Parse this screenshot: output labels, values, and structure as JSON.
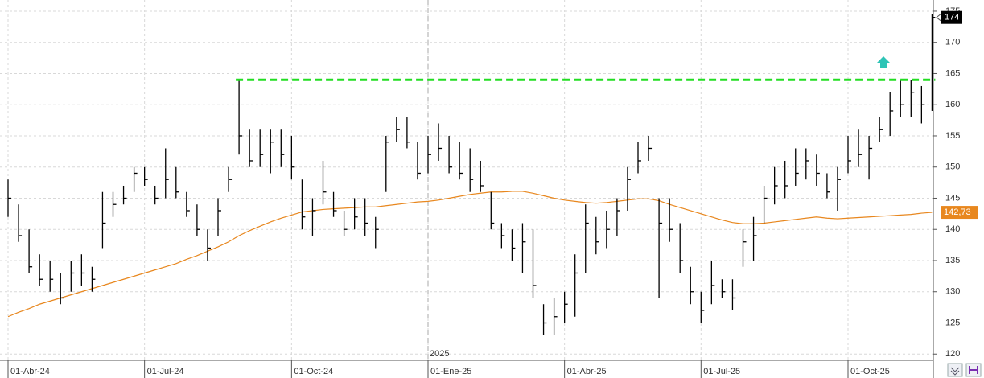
{
  "chart_data": {
    "type": "ohlc",
    "categories": [
      "01-Abr-24",
      null,
      null,
      null,
      null,
      null,
      null,
      null,
      null,
      null,
      null,
      null,
      null,
      "01-Jul-24",
      null,
      null,
      null,
      null,
      null,
      null,
      null,
      null,
      null,
      null,
      null,
      null,
      null,
      "01-Oct-24",
      null,
      null,
      null,
      null,
      null,
      null,
      null,
      null,
      null,
      null,
      null,
      null,
      "01-Ene-25",
      null,
      null,
      null,
      null,
      null,
      null,
      null,
      null,
      null,
      null,
      null,
      null,
      "01-Abr-25",
      null,
      null,
      null,
      null,
      null,
      null,
      null,
      null,
      null,
      null,
      null,
      null,
      "01-Jul-25",
      null,
      null,
      null,
      null,
      null,
      null,
      null,
      null,
      null,
      null,
      null,
      null,
      null,
      "01-Oct-25",
      null,
      null,
      null,
      null,
      null,
      null,
      null,
      null
    ],
    "bars": {
      "color": "#000000",
      "last_label": "174",
      "high": [
        148,
        144,
        140,
        136,
        135,
        133,
        135,
        136,
        134,
        146,
        146,
        147,
        150,
        150,
        147,
        153,
        150,
        146,
        144,
        140,
        145,
        150,
        164,
        156,
        156,
        156,
        156,
        155,
        148,
        145,
        151,
        146,
        143,
        145,
        145,
        142,
        155,
        158,
        158,
        154,
        155,
        157,
        155,
        154,
        153,
        151,
        146,
        141,
        140,
        141,
        140,
        128,
        129,
        130,
        136,
        144,
        142,
        143,
        145,
        150,
        154,
        155,
        145,
        145,
        141,
        134,
        130,
        135,
        132,
        132,
        140,
        142,
        147,
        150,
        151,
        153,
        153,
        152,
        149,
        150,
        155,
        156,
        155,
        158,
        162,
        164,
        164,
        163,
        174.5
      ],
      "low": [
        142,
        138,
        133,
        131,
        130,
        128,
        130,
        131,
        130,
        137,
        142,
        144,
        146,
        147,
        144,
        145,
        145,
        142,
        139,
        135,
        139,
        146,
        152,
        150,
        150,
        149,
        150,
        148,
        140,
        139,
        144,
        142,
        139,
        140,
        139,
        137,
        146,
        154,
        153,
        148,
        149,
        151,
        149,
        148,
        146,
        146,
        140,
        137,
        135,
        133,
        129,
        123,
        123,
        125,
        126,
        133,
        136,
        137,
        139,
        143,
        149,
        151,
        129,
        138,
        133,
        128,
        125,
        128,
        129,
        127,
        134,
        135,
        141,
        144,
        145,
        147,
        148,
        147,
        145,
        143,
        149,
        150,
        148,
        154,
        155,
        158,
        158,
        157,
        159
      ],
      "close": [
        145,
        139,
        134,
        132,
        132,
        129,
        133,
        133,
        132,
        141,
        144,
        145,
        149,
        148,
        145,
        148,
        146,
        143,
        140,
        137,
        143,
        148,
        155,
        151,
        152,
        154,
        152,
        150,
        142,
        143,
        146,
        143,
        140,
        142,
        141,
        140,
        154,
        156,
        154,
        149,
        152,
        153,
        150,
        149,
        148,
        147,
        141,
        139,
        137,
        138,
        131,
        125,
        126,
        128,
        133,
        141,
        138,
        140,
        143,
        148,
        151,
        153,
        141,
        140,
        135,
        130,
        127,
        131,
        130,
        129,
        138,
        139,
        145,
        147,
        147,
        149,
        151,
        149,
        146,
        148,
        151,
        152,
        153,
        156,
        159,
        160,
        162,
        160,
        174
      ]
    },
    "moving_average": {
      "color": "#e8871e",
      "last_label": "142,73",
      "values": [
        126,
        126.7,
        127.3,
        128,
        128.5,
        129,
        129.5,
        130,
        130.5,
        131,
        131.5,
        132,
        132.5,
        133,
        133.5,
        134,
        134.5,
        135.2,
        135.8,
        136.5,
        137.2,
        138,
        139,
        139.8,
        140.5,
        141.2,
        141.8,
        142.3,
        142.8,
        143,
        143.2,
        143.3,
        143.4,
        143.5,
        143.6,
        143.6,
        143.8,
        144,
        144.2,
        144.4,
        144.5,
        144.7,
        145,
        145.3,
        145.6,
        145.8,
        146,
        146,
        146.1,
        146.1,
        145.8,
        145.4,
        145,
        144.7,
        144.5,
        144.3,
        144.2,
        144.3,
        144.5,
        144.7,
        144.9,
        144.9,
        144.6,
        144,
        143.5,
        143,
        142.5,
        142,
        141.5,
        141.1,
        140.9,
        140.9,
        141,
        141.2,
        141.4,
        141.6,
        141.8,
        142,
        141.8,
        141.7,
        141.8,
        141.9,
        142,
        142.1,
        142.2,
        142.3,
        142.4,
        142.6,
        142.73
      ]
    },
    "resistance": {
      "value": 164,
      "start_index": 22,
      "color": "#22dd22"
    },
    "year_marker": {
      "label": "2025",
      "category_index": 40
    },
    "ylim": [
      119,
      176.8
    ],
    "yticks": [
      120,
      125,
      130,
      135,
      140,
      145,
      150,
      155,
      160,
      165,
      170,
      175
    ],
    "grid": true
  }
}
